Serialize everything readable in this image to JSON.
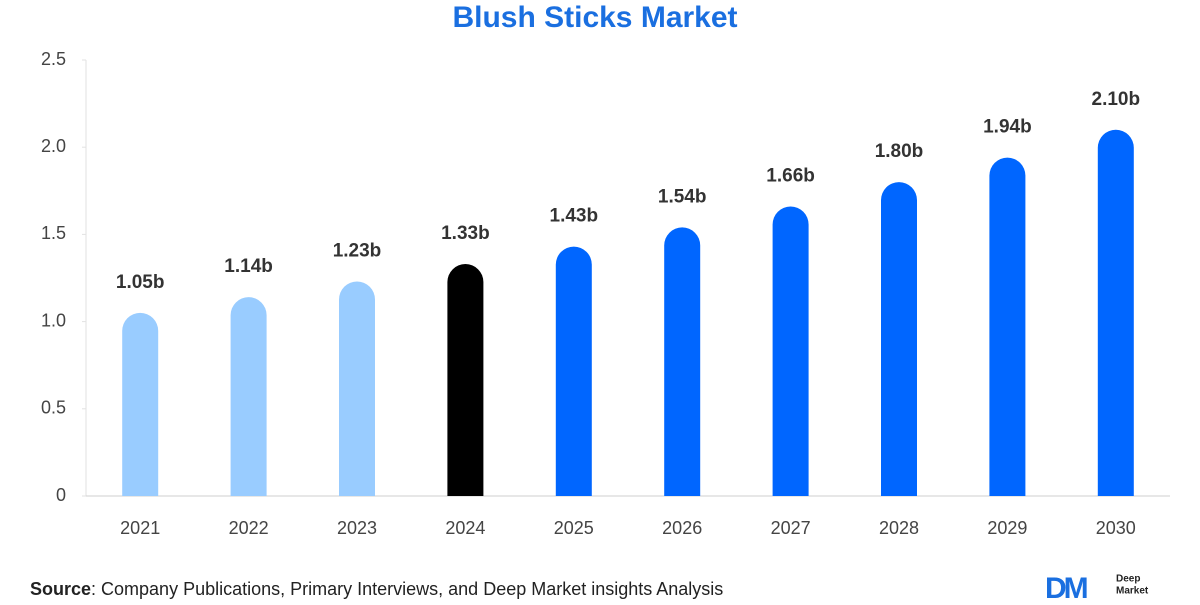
{
  "chart_data": {
    "type": "bar",
    "title": "Blush Sticks Market",
    "categories": [
      "2021",
      "2022",
      "2023",
      "2024",
      "2025",
      "2026",
      "2027",
      "2028",
      "2029",
      "2030"
    ],
    "values": [
      1.05,
      1.14,
      1.23,
      1.33,
      1.43,
      1.54,
      1.66,
      1.8,
      1.94,
      2.1
    ],
    "value_labels": [
      "1.05b",
      "1.14b",
      "1.23b",
      "1.33b",
      "1.43b",
      "1.54b",
      "1.66b",
      "1.80b",
      "1.94b",
      "2.10b"
    ],
    "colors": [
      "#99ccff",
      "#99ccff",
      "#99ccff",
      "#000000",
      "#0066ff",
      "#0066ff",
      "#0066ff",
      "#0066ff",
      "#0066ff",
      "#0066ff"
    ],
    "ylim": [
      0,
      2.5
    ],
    "yticks": [
      0,
      0.5,
      {
        "value": 1,
        "label": "1.0"
      },
      1.5,
      {
        "value": 2,
        "label": "2.0"
      },
      2.5
    ],
    "grid": false
  },
  "source": {
    "label": "Source",
    "text": ": Company Publications, Primary Interviews, and Deep Market insights Analysis"
  },
  "logo": {
    "mark": "DM",
    "line1": "Deep",
    "line2": "Market"
  }
}
